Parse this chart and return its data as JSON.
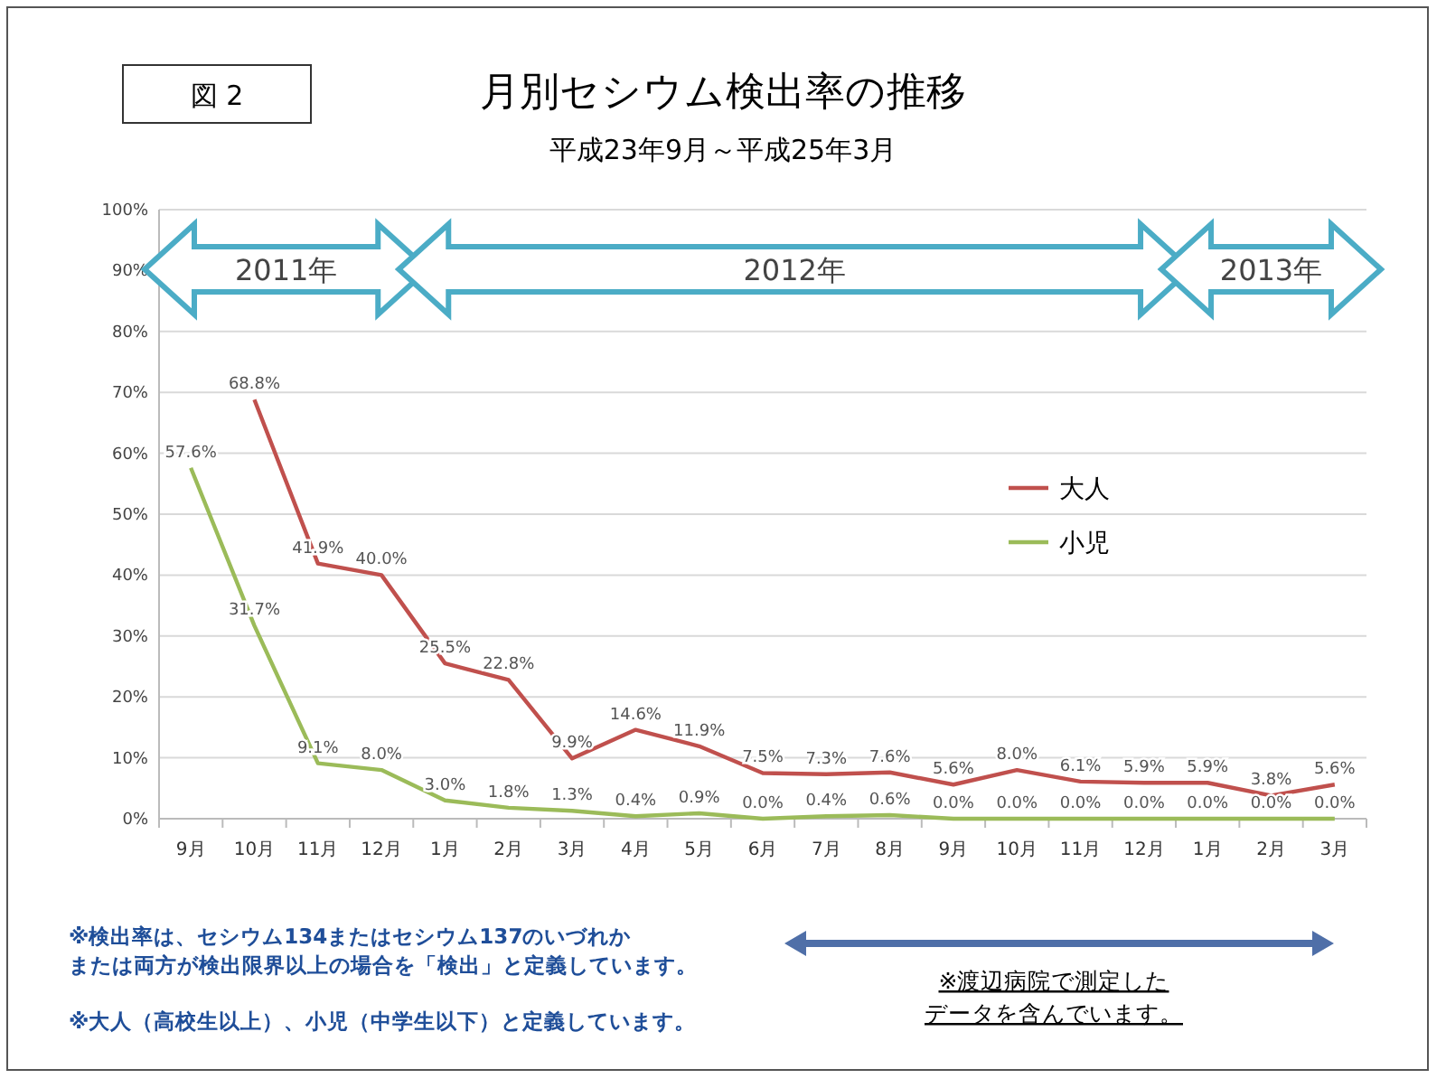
{
  "chart_data": {
    "type": "line",
    "title": "月別セシウム検出率の推移",
    "subtitle": "平成23年9月～平成25年3月",
    "categories": [
      "9月",
      "10月",
      "11月",
      "12月",
      "1月",
      "2月",
      "3月",
      "4月",
      "5月",
      "6月",
      "7月",
      "8月",
      "9月",
      "10月",
      "11月",
      "12月",
      "1月",
      "2月",
      "3月"
    ],
    "series": [
      {
        "name": "大人",
        "color": "#c0504d",
        "values": [
          null,
          68.8,
          41.9,
          40.0,
          25.5,
          22.8,
          9.9,
          14.6,
          11.9,
          7.5,
          7.3,
          7.6,
          5.6,
          8.0,
          6.1,
          5.9,
          5.9,
          3.8,
          5.6
        ],
        "value_labels": [
          null,
          "68.8%",
          "41.9%",
          "40.0%",
          "25.5%",
          "22.8%",
          "9.9%",
          "14.6%",
          "11.9%",
          "7.5%",
          "7.3%",
          "7.6%",
          "5.6%",
          "8.0%",
          "6.1%",
          "5.9%",
          "5.9%",
          "3.8%",
          "5.6%"
        ]
      },
      {
        "name": "小児",
        "color": "#9bbb59",
        "values": [
          57.6,
          31.7,
          9.1,
          8.0,
          3.0,
          1.8,
          1.3,
          0.4,
          0.9,
          0.0,
          0.4,
          0.6,
          0.0,
          0.0,
          0.0,
          0.0,
          0.0,
          0.0,
          0.0
        ],
        "value_labels": [
          "57.6%",
          "31.7%",
          "9.1%",
          "8.0%",
          "3.0%",
          "1.8%",
          "1.3%",
          "0.4%",
          "0.9%",
          "0.0%",
          "0.4%",
          "0.6%",
          "0.0%",
          "0.0%",
          "0.0%",
          "0.0%",
          "0.0%",
          "0.0%",
          "0.0%"
        ]
      }
    ],
    "ylim": [
      0,
      100
    ],
    "yticks": [
      {
        "value": 0,
        "label": "0%"
      },
      {
        "value": 10,
        "label": "10%"
      },
      {
        "value": 20,
        "label": "20%"
      },
      {
        "value": 30,
        "label": "30%"
      },
      {
        "value": 40,
        "label": "40%"
      },
      {
        "value": 50,
        "label": "50%"
      },
      {
        "value": 60,
        "label": "60%"
      },
      {
        "value": 70,
        "label": "70%"
      },
      {
        "value": 80,
        "label": "80%"
      },
      {
        "value": 90,
        "label": "90%"
      },
      {
        "value": 100,
        "label": "100%"
      }
    ],
    "grid": "y",
    "legend": "right",
    "marker": "none",
    "line_style": "solid",
    "annotations": [
      "図 2",
      "2011年",
      "2012年",
      "2013年",
      "※検出率は、セシウム134またはセシウム137のいづれかまたは両方が検出限界以上の場合を「検出」と定義しています。",
      "※大人（高校生以上）、小児（中学生以下）と定義しています。",
      "※渡辺病院で測定したデータを含んでいます。"
    ]
  }
}
